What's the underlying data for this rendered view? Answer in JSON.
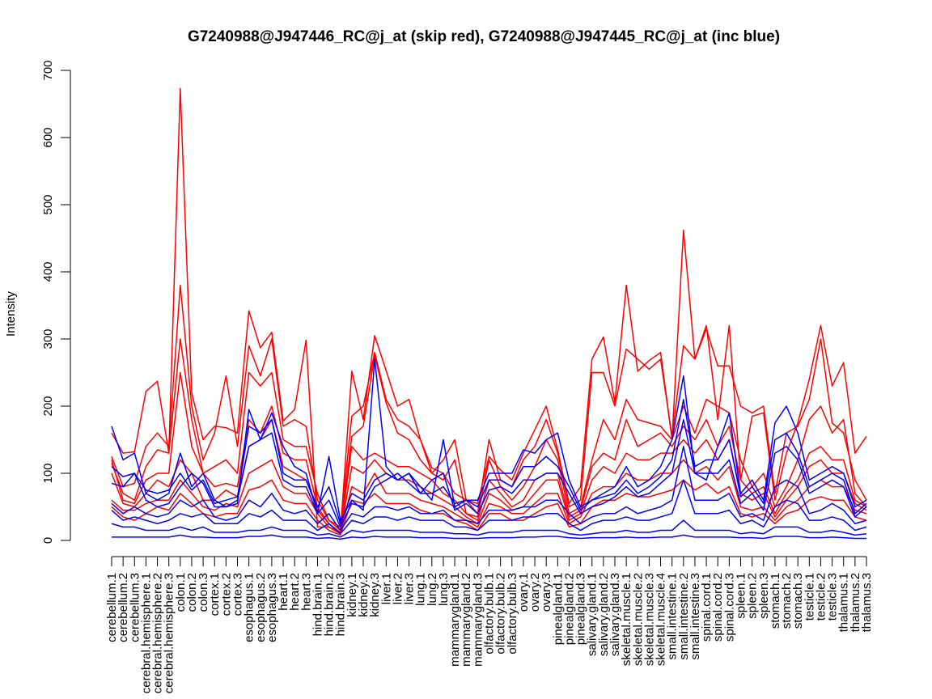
{
  "chart_data": {
    "type": "line",
    "title": "G7240988@J947446_RC@j_at (skip red), G7240988@J947445_RC@j_at (inc blue)",
    "xlabel": "",
    "ylabel": "Intensity",
    "ylim": [
      0,
      700
    ],
    "yticks": [
      0,
      100,
      200,
      300,
      400,
      500,
      600,
      700
    ],
    "grid": false,
    "legend": "none",
    "colors": {
      "skip": "#ff0000",
      "inc": "#0000ff",
      "axis": "#000000"
    },
    "categories": [
      "cerebellum.1",
      "cerebellum.2",
      "cerebellum.3",
      "cerebral.hemisphere.1",
      "cerebral.hemisphere.2",
      "cerebral.hemisphere.3",
      "colon.1",
      "colon.2",
      "colon.3",
      "cortex.1",
      "cortex.2",
      "cortex.3",
      "esophagus.1",
      "esophagus.2",
      "esophagus.3",
      "heart.1",
      "heart.2",
      "heart.3",
      "hind.brain.1",
      "hind.brain.2",
      "hind.brain.3",
      "kidney.1",
      "kidney.2",
      "kidney.3",
      "liver.1",
      "liver.2",
      "liver.3",
      "lung.1",
      "lung.2",
      "lung.3",
      "mammarygland.1",
      "mammarygland.2",
      "mammarygland.3",
      "olfactory.bulb.1",
      "olfactory.bulb.2",
      "olfactory.bulb.3",
      "ovary.1",
      "ovary.2",
      "ovary.3",
      "pinealgland.1",
      "pinealgland.2",
      "pinealgland.3",
      "salivary.gland.1",
      "salivary.gland.2",
      "salivary.gland.3",
      "skeletal.muscle.1",
      "skeletal.muscle.2",
      "skeletal.muscle.3",
      "skeletal.muscle.4",
      "small.intestine.1",
      "small.intestine.2",
      "small.intestine.3",
      "spinal.cord.1",
      "spinal.cord.2",
      "spinal.cord.3",
      "spleen.1",
      "spleen.2",
      "spleen.3",
      "stomach.1",
      "stomach.2",
      "stomach.3",
      "testicle.1",
      "testicle.2",
      "testicle.3",
      "thalamus.1",
      "thalamus.2",
      "thalamus.3"
    ],
    "series": [
      {
        "group": "skip",
        "values": [
          160,
          130,
          132,
          222,
          237,
          130,
          673,
          220,
          150,
          170,
          168,
          160,
          342,
          287,
          310,
          178,
          195,
          298,
          20,
          20,
          12,
          252,
          180,
          305,
          253,
          200,
          210,
          150,
          108,
          100,
          70,
          60,
          55,
          125,
          105,
          90,
          130,
          165,
          200,
          135,
          55,
          80,
          270,
          303,
          205,
          380,
          252,
          268,
          280,
          150,
          462,
          270,
          320,
          180,
          320,
          90,
          185,
          190,
          60,
          130,
          175,
          240,
          320,
          230,
          265,
          130,
          155
        ]
      },
      {
        "group": "skip",
        "values": [
          125,
          80,
          85,
          140,
          160,
          140,
          380,
          200,
          120,
          160,
          245,
          140,
          290,
          245,
          300,
          170,
          180,
          170,
          60,
          30,
          20,
          185,
          200,
          280,
          210,
          180,
          170,
          150,
          100,
          120,
          150,
          60,
          40,
          150,
          90,
          80,
          120,
          140,
          180,
          130,
          50,
          60,
          250,
          250,
          200,
          285,
          270,
          255,
          270,
          155,
          290,
          270,
          315,
          260,
          260,
          200,
          190,
          200,
          70,
          160,
          170,
          210,
          300,
          175,
          160,
          90,
          60
        ]
      },
      {
        "group": "skip",
        "values": [
          115,
          70,
          60,
          110,
          135,
          130,
          300,
          180,
          100,
          110,
          120,
          100,
          250,
          230,
          250,
          150,
          140,
          140,
          70,
          30,
          15,
          155,
          170,
          275,
          205,
          160,
          150,
          120,
          100,
          90,
          120,
          40,
          35,
          120,
          80,
          60,
          80,
          110,
          150,
          120,
          40,
          50,
          120,
          180,
          150,
          210,
          180,
          175,
          170,
          150,
          200,
          160,
          210,
          200,
          190,
          120,
          80,
          100,
          50,
          80,
          120,
          180,
          200,
          160,
          180,
          70,
          50
        ]
      },
      {
        "group": "skip",
        "values": [
          120,
          60,
          55,
          90,
          100,
          100,
          250,
          140,
          100,
          80,
          85,
          80,
          180,
          160,
          200,
          130,
          120,
          120,
          50,
          25,
          12,
          140,
          120,
          130,
          120,
          110,
          110,
          100,
          90,
          70,
          60,
          40,
          30,
          90,
          70,
          50,
          60,
          90,
          100,
          100,
          35,
          45,
          110,
          130,
          120,
          180,
          140,
          150,
          160,
          140,
          170,
          150,
          180,
          140,
          170,
          90,
          70,
          80,
          40,
          70,
          90,
          130,
          140,
          120,
          120,
          60,
          50
        ]
      },
      {
        "group": "skip",
        "values": [
          100,
          55,
          50,
          70,
          90,
          80,
          120,
          100,
          60,
          60,
          75,
          65,
          140,
          150,
          180,
          110,
          100,
          90,
          45,
          25,
          10,
          110,
          100,
          120,
          100,
          90,
          90,
          80,
          70,
          60,
          50,
          35,
          25,
          70,
          60,
          45,
          50,
          70,
          90,
          90,
          30,
          40,
          90,
          110,
          100,
          130,
          120,
          120,
          130,
          130,
          150,
          130,
          150,
          120,
          150,
          70,
          60,
          70,
          35,
          60,
          80,
          110,
          120,
          100,
          100,
          55,
          45
        ]
      },
      {
        "group": "skip",
        "values": [
          60,
          45,
          45,
          55,
          60,
          60,
          90,
          70,
          50,
          45,
          55,
          50,
          100,
          110,
          120,
          80,
          70,
          70,
          40,
          20,
          10,
          80,
          70,
          100,
          70,
          70,
          70,
          60,
          55,
          50,
          40,
          30,
          20,
          55,
          50,
          40,
          40,
          55,
          70,
          70,
          25,
          35,
          70,
          80,
          80,
          100,
          90,
          90,
          100,
          100,
          120,
          100,
          110,
          90,
          110,
          50,
          45,
          50,
          30,
          50,
          60,
          80,
          90,
          80,
          80,
          45,
          40
        ]
      },
      {
        "group": "skip",
        "values": [
          50,
          35,
          30,
          40,
          50,
          45,
          70,
          55,
          40,
          35,
          40,
          40,
          75,
          80,
          90,
          60,
          55,
          55,
          30,
          15,
          8,
          60,
          55,
          70,
          55,
          55,
          55,
          45,
          40,
          40,
          30,
          25,
          15,
          40,
          40,
          30,
          30,
          40,
          50,
          55,
          20,
          25,
          50,
          60,
          60,
          70,
          65,
          65,
          70,
          75,
          90,
          75,
          85,
          70,
          80,
          40,
          35,
          40,
          25,
          40,
          45,
          60,
          65,
          60,
          60,
          35,
          30
        ]
      },
      {
        "group": "inc",
        "values": [
          170,
          120,
          130,
          70,
          60,
          70,
          130,
          80,
          100,
          60,
          50,
          55,
          195,
          150,
          190,
          140,
          110,
          100,
          40,
          125,
          30,
          60,
          45,
          270,
          110,
          90,
          100,
          80,
          60,
          150,
          50,
          60,
          60,
          100,
          100,
          100,
          135,
          130,
          150,
          160,
          90,
          50,
          60,
          70,
          80,
          110,
          80,
          90,
          110,
          150,
          245,
          100,
          90,
          140,
          190,
          70,
          90,
          60,
          175,
          200,
          160,
          90,
          100,
          110,
          100,
          50,
          60
        ]
      },
      {
        "group": "inc",
        "values": [
          110,
          95,
          100,
          75,
          70,
          75,
          100,
          75,
          90,
          55,
          60,
          65,
          170,
          160,
          180,
          100,
          90,
          90,
          50,
          80,
          25,
          70,
          60,
          90,
          100,
          90,
          100,
          70,
          70,
          80,
          55,
          60,
          50,
          90,
          90,
          80,
          110,
          110,
          125,
          110,
          80,
          45,
          60,
          65,
          70,
          90,
          70,
          80,
          95,
          120,
          210,
          110,
          120,
          120,
          150,
          65,
          80,
          55,
          150,
          160,
          130,
          80,
          90,
          100,
          90,
          40,
          55
        ]
      },
      {
        "group": "inc",
        "values": [
          85,
          80,
          100,
          60,
          50,
          55,
          80,
          100,
          85,
          50,
          50,
          60,
          140,
          150,
          160,
          90,
          80,
          80,
          40,
          60,
          20,
          55,
          50,
          80,
          90,
          100,
          85,
          70,
          90,
          100,
          45,
          55,
          40,
          75,
          80,
          70,
          90,
          90,
          100,
          100,
          70,
          40,
          50,
          55,
          65,
          80,
          65,
          70,
          85,
          100,
          180,
          100,
          100,
          100,
          120,
          55,
          70,
          45,
          130,
          140,
          120,
          70,
          80,
          90,
          80,
          35,
          50
        ]
      },
      {
        "group": "inc",
        "values": [
          55,
          40,
          50,
          40,
          35,
          40,
          60,
          50,
          60,
          35,
          30,
          35,
          60,
          50,
          70,
          45,
          40,
          45,
          25,
          40,
          15,
          40,
          35,
          50,
          50,
          45,
          50,
          40,
          40,
          45,
          30,
          30,
          25,
          45,
          45,
          45,
          50,
          50,
          60,
          60,
          40,
          25,
          35,
          40,
          40,
          50,
          40,
          45,
          50,
          60,
          140,
          60,
          60,
          60,
          70,
          35,
          40,
          30,
          80,
          90,
          80,
          40,
          45,
          55,
          45,
          25,
          30
        ]
      },
      {
        "group": "inc",
        "values": [
          45,
          30,
          35,
          30,
          25,
          30,
          40,
          35,
          40,
          25,
          25,
          25,
          40,
          35,
          45,
          30,
          30,
          30,
          15,
          25,
          10,
          30,
          25,
          35,
          35,
          30,
          35,
          30,
          30,
          30,
          20,
          20,
          15,
          30,
          30,
          30,
          35,
          35,
          40,
          40,
          25,
          15,
          25,
          30,
          30,
          35,
          30,
          30,
          35,
          40,
          90,
          40,
          40,
          40,
          45,
          25,
          30,
          20,
          50,
          60,
          55,
          30,
          30,
          35,
          30,
          15,
          20
        ]
      },
      {
        "group": "inc",
        "values": [
          25,
          20,
          20,
          15,
          15,
          15,
          20,
          15,
          20,
          12,
          12,
          12,
          15,
          15,
          20,
          15,
          15,
          15,
          8,
          10,
          5,
          15,
          12,
          15,
          15,
          15,
          15,
          12,
          12,
          12,
          10,
          10,
          8,
          12,
          12,
          12,
          15,
          15,
          15,
          15,
          10,
          8,
          10,
          12,
          12,
          15,
          12,
          12,
          15,
          15,
          30,
          15,
          15,
          15,
          15,
          10,
          12,
          10,
          20,
          20,
          20,
          12,
          12,
          15,
          12,
          8,
          10
        ]
      },
      {
        "group": "inc",
        "values": [
          5,
          5,
          5,
          5,
          5,
          5,
          8,
          5,
          5,
          4,
          4,
          4,
          6,
          6,
          8,
          5,
          5,
          5,
          3,
          4,
          2,
          5,
          4,
          6,
          5,
          5,
          5,
          4,
          4,
          4,
          3,
          3,
          3,
          4,
          4,
          4,
          5,
          5,
          6,
          6,
          4,
          3,
          4,
          4,
          4,
          5,
          4,
          4,
          5,
          5,
          8,
          5,
          5,
          5,
          5,
          4,
          4,
          3,
          6,
          6,
          6,
          4,
          4,
          5,
          4,
          3,
          3
        ]
      }
    ]
  }
}
